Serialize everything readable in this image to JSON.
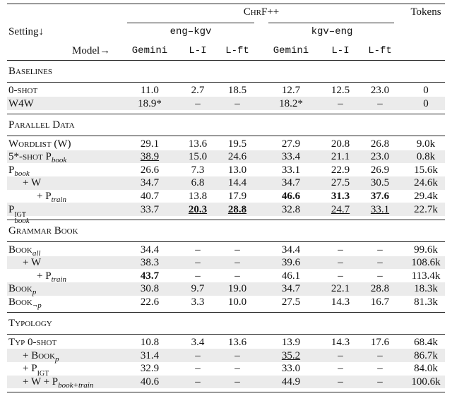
{
  "header": {
    "chrf": "ChrF++",
    "tokens": "Tokens",
    "setting": "Setting↓",
    "model": "Model→",
    "directions": [
      "eng–kgv",
      "kgv–eng"
    ],
    "columns": [
      "Gemini",
      "L-I",
      "L-ft",
      "Gemini",
      "L-I",
      "L-ft"
    ]
  },
  "sections": [
    {
      "title": "Baselines",
      "rows": [
        {
          "label": {
            "main": "0-shot"
          },
          "cells": [
            "11.0",
            "2.7",
            "18.5",
            "12.7",
            "12.5",
            "23.0",
            "0"
          ]
        },
        {
          "label": {
            "main": "W4W"
          },
          "cells": [
            "18.9*",
            "–",
            "–",
            "18.2*",
            "–",
            "–",
            "0"
          ],
          "shaded": true
        }
      ]
    },
    {
      "title": "Parallel Data",
      "rows": [
        {
          "label": {
            "main": "Wordlist (W)"
          },
          "cells": [
            "29.1",
            "13.6",
            "19.5",
            "27.9",
            "20.8",
            "26.8",
            "9.0k"
          ]
        },
        {
          "label": {
            "main": "5*-shot P",
            "sub": "book"
          },
          "cells": [
            "38.9",
            "15.0",
            "24.6",
            "33.4",
            "21.1",
            "23.0",
            "0.8k"
          ],
          "shaded": true,
          "underline": [
            0
          ]
        },
        {
          "label": {
            "main": "P",
            "sub": "book"
          },
          "cells": [
            "26.6",
            "7.3",
            "13.0",
            "33.1",
            "22.9",
            "26.9",
            "15.6k"
          ]
        },
        {
          "label": {
            "main": "+ W"
          },
          "indent": 1,
          "cells": [
            "34.7",
            "6.8",
            "14.4",
            "34.7",
            "27.5",
            "30.5",
            "24.6k"
          ],
          "shaded": true
        },
        {
          "label": {
            "main": "+ P",
            "sub": "train"
          },
          "indent": 2,
          "cells": [
            "40.7",
            "13.8",
            "17.9",
            "46.6",
            "31.3",
            "37.6",
            "29.4k"
          ],
          "bold": [
            3,
            4,
            5
          ]
        },
        {
          "label": {
            "main": "P",
            "sup": "IGT",
            "sub": "book"
          },
          "cells": [
            "33.7",
            "20.3",
            "28.8",
            "32.8",
            "24.7",
            "33.1",
            "22.7k"
          ],
          "shaded": true,
          "bold": [
            1,
            2
          ],
          "underline": [
            1,
            2,
            4,
            5
          ]
        }
      ]
    },
    {
      "title": "Grammar Book",
      "rows": [
        {
          "label": {
            "main": "Book",
            "sub": "all"
          },
          "cells": [
            "34.4",
            "–",
            "–",
            "34.4",
            "–",
            "–",
            "99.6k"
          ]
        },
        {
          "label": {
            "main": "+ W"
          },
          "indent": 1,
          "cells": [
            "38.3",
            "–",
            "–",
            "39.6",
            "–",
            "–",
            "108.6k"
          ],
          "shaded": true
        },
        {
          "label": {
            "main": "+ P",
            "sub": "train"
          },
          "indent": 2,
          "cells": [
            "43.7",
            "–",
            "–",
            "46.1",
            "–",
            "–",
            "113.4k"
          ],
          "bold": [
            0
          ]
        },
        {
          "label": {
            "main": "Book",
            "sub": "p"
          },
          "cells": [
            "30.8",
            "9.7",
            "19.0",
            "34.7",
            "22.1",
            "28.8",
            "18.3k"
          ],
          "shaded": true
        },
        {
          "label": {
            "main": "Book",
            "sub": "¬p"
          },
          "cells": [
            "22.6",
            "3.3",
            "10.0",
            "27.5",
            "14.3",
            "16.7",
            "81.3k"
          ]
        }
      ]
    },
    {
      "title": "Typology",
      "rows": [
        {
          "label": {
            "main": "Typ 0-shot"
          },
          "cells": [
            "10.8",
            "3.4",
            "13.6",
            "13.9",
            "14.3",
            "17.6",
            "68.4k"
          ]
        },
        {
          "label": {
            "main": "+ Book",
            "sub": "p"
          },
          "indent": 1,
          "cells": [
            "31.4",
            "–",
            "–",
            "35.2",
            "–",
            "–",
            "86.7k"
          ],
          "shaded": true,
          "underline": [
            3
          ]
        },
        {
          "label": {
            "main": "+ P",
            "sup": "IGT",
            "sub": "book"
          },
          "indent": 1,
          "cells": [
            "32.9",
            "–",
            "–",
            "33.0",
            "–",
            "–",
            "84.0k"
          ]
        },
        {
          "label": {
            "main": "+ W + P",
            "sub": "book+train"
          },
          "indent": 1,
          "cells": [
            "40.6",
            "–",
            "–",
            "44.9",
            "–",
            "–",
            "100.6k"
          ],
          "shaded": true
        }
      ]
    }
  ]
}
